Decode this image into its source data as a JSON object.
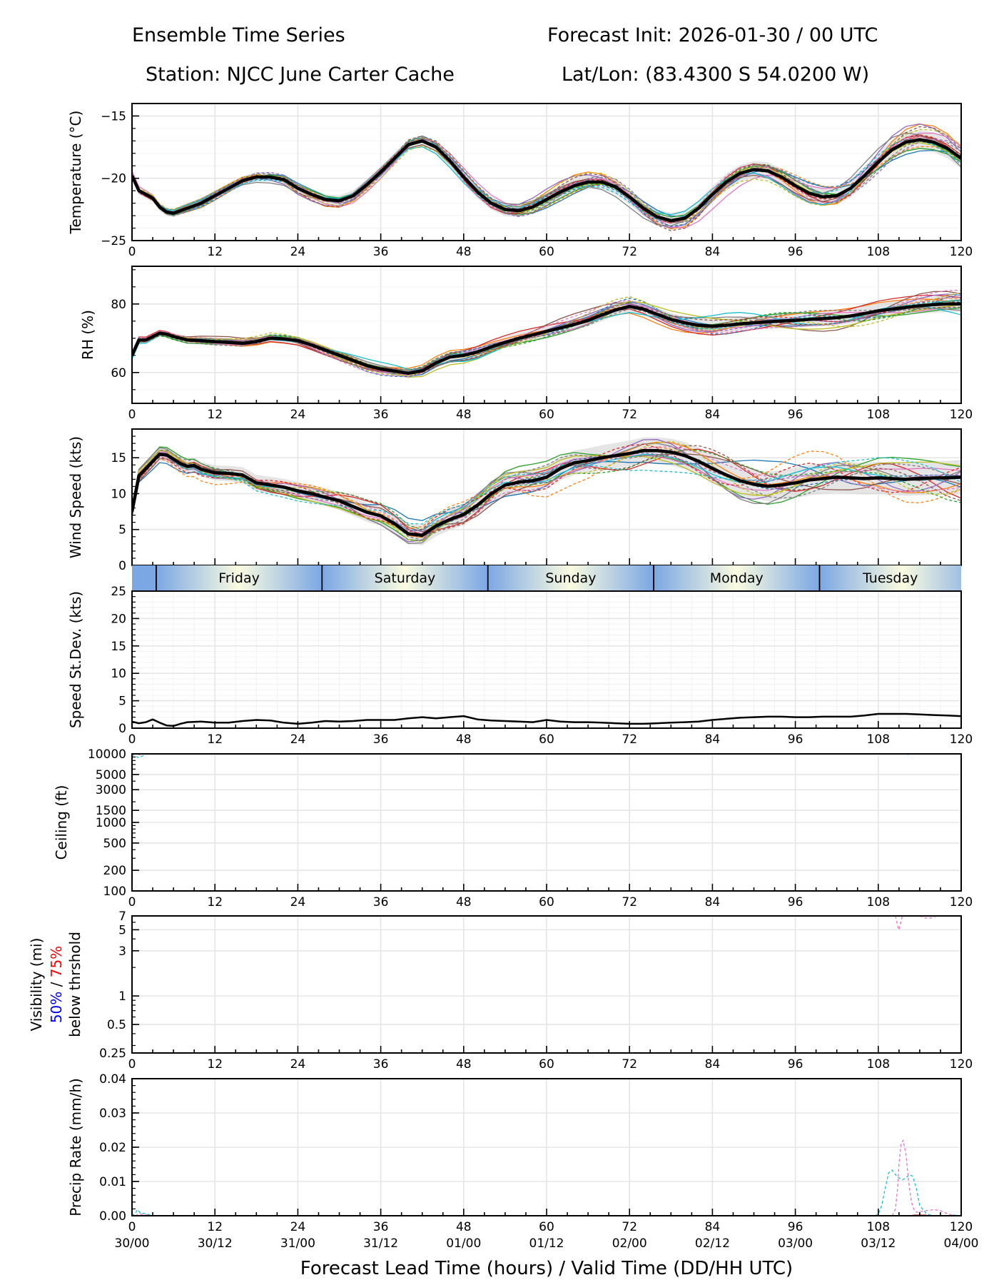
{
  "header": {
    "title_left": "Ensemble Time Series",
    "title_right": "Forecast Init: 2026-01-30 / 00 UTC",
    "station": "Station: NJCC June Carter Cache",
    "latlon": "Lat/Lon: (83.4300 S 54.0200 W)"
  },
  "colors": {
    "mean": "#000000",
    "spread": "#d3d3d3",
    "grid": "#e6e6e6",
    "vis_50": "#0000ff",
    "vis_75": "#ff0000",
    "members": [
      "#1f77b4",
      "#ff7f0e",
      "#2ca02c",
      "#d62728",
      "#9467bd",
      "#8c564b",
      "#e377c2",
      "#7f7f7f",
      "#bcbd22",
      "#17becf"
    ]
  },
  "chart_data": [
    {
      "id": "temperature",
      "type": "line",
      "ylabel": "Temperature (°C)",
      "ylim": [
        -25,
        -14
      ],
      "yticks": [
        -25,
        -20,
        -15
      ],
      "ytick_labels": [
        "−25",
        "−20",
        "−15"
      ],
      "xlim": [
        0,
        120
      ],
      "xticks": [
        0,
        12,
        24,
        36,
        48,
        60,
        72,
        84,
        96,
        108,
        120
      ],
      "grid": true,
      "mean": {
        "x": [
          0,
          1,
          2,
          3,
          4,
          5,
          6,
          7,
          8,
          10,
          12,
          14,
          16,
          18,
          20,
          22,
          24,
          26,
          28,
          30,
          32,
          34,
          36,
          38,
          40,
          42,
          44,
          46,
          48,
          50,
          52,
          54,
          56,
          58,
          60,
          62,
          64,
          66,
          68,
          70,
          72,
          74,
          76,
          78,
          80,
          82,
          84,
          86,
          88,
          90,
          92,
          94,
          96,
          98,
          100,
          102,
          104,
          106,
          108,
          110,
          112,
          114,
          116,
          118,
          120
        ],
        "y": [
          -19.8,
          -21.0,
          -21.3,
          -21.6,
          -22.3,
          -22.7,
          -22.8,
          -22.6,
          -22.4,
          -22.0,
          -21.4,
          -20.8,
          -20.2,
          -19.9,
          -19.9,
          -20.1,
          -20.8,
          -21.3,
          -21.7,
          -21.8,
          -21.4,
          -20.5,
          -19.5,
          -18.4,
          -17.3,
          -17.0,
          -17.5,
          -18.6,
          -19.9,
          -21.1,
          -22.0,
          -22.5,
          -22.6,
          -22.3,
          -21.7,
          -21.1,
          -20.6,
          -20.3,
          -20.3,
          -20.7,
          -21.5,
          -22.4,
          -23.1,
          -23.4,
          -23.2,
          -22.4,
          -21.3,
          -20.3,
          -19.6,
          -19.3,
          -19.4,
          -19.9,
          -20.6,
          -21.2,
          -21.5,
          -21.4,
          -20.8,
          -19.8,
          -18.7,
          -17.7,
          -17.1,
          -16.9,
          -17.1,
          -17.6,
          -18.4
        ]
      },
      "spread": 0.5,
      "member_count": 20
    },
    {
      "id": "rh",
      "type": "line",
      "ylabel": "RH (%)",
      "ylim": [
        51,
        91
      ],
      "yticks": [
        60,
        80
      ],
      "ytick_labels": [
        "60",
        "80"
      ],
      "xlim": [
        0,
        120
      ],
      "xticks": [
        0,
        12,
        24,
        36,
        48,
        60,
        72,
        84,
        96,
        108,
        120
      ],
      "grid": true,
      "mean": {
        "x": [
          0,
          1,
          2,
          3,
          4,
          5,
          6,
          8,
          10,
          12,
          14,
          16,
          18,
          20,
          22,
          24,
          26,
          28,
          30,
          32,
          34,
          36,
          38,
          40,
          42,
          44,
          46,
          48,
          50,
          52,
          54,
          56,
          58,
          60,
          62,
          64,
          66,
          68,
          70,
          72,
          74,
          76,
          78,
          80,
          82,
          84,
          86,
          88,
          90,
          92,
          94,
          96,
          98,
          100,
          102,
          104,
          106,
          108,
          110,
          112,
          114,
          116,
          118,
          120
        ],
        "y": [
          65,
          69.5,
          69.5,
          70.5,
          71.5,
          71.2,
          70.5,
          69.5,
          69.3,
          69.0,
          68.8,
          68.5,
          69.0,
          70.0,
          69.8,
          69.3,
          68.0,
          66.5,
          65.0,
          63.5,
          62.0,
          61.0,
          60.4,
          59.8,
          60.5,
          62.8,
          64.5,
          65.0,
          66.0,
          67.5,
          68.8,
          70.0,
          71.0,
          72.0,
          73.0,
          74.0,
          75.2,
          76.8,
          78.3,
          79.3,
          78.5,
          77.0,
          75.5,
          74.5,
          73.8,
          73.5,
          73.8,
          74.2,
          74.5,
          74.8,
          75.0,
          75.2,
          75.5,
          75.7,
          76.0,
          76.5,
          77.2,
          78.0,
          78.5,
          79.0,
          79.5,
          79.8,
          80.0,
          80.0
        ]
      },
      "spread": 1.5,
      "member_count": 20
    },
    {
      "id": "wind_speed",
      "type": "line",
      "ylabel": "Wind Speed (kts)",
      "ylim": [
        0,
        19
      ],
      "yticks": [
        0,
        5,
        10,
        15
      ],
      "ytick_labels": [
        "0",
        "5",
        "10",
        "15"
      ],
      "xlim": [
        0,
        120
      ],
      "xticks": [
        0,
        12,
        24,
        36,
        48,
        60,
        72,
        84,
        96,
        108,
        120
      ],
      "grid": true,
      "mean": {
        "x": [
          0,
          1,
          2,
          3,
          4,
          5,
          6,
          7,
          8,
          9,
          10,
          12,
          14,
          16,
          18,
          20,
          22,
          24,
          26,
          28,
          30,
          32,
          34,
          36,
          38,
          40,
          42,
          44,
          46,
          48,
          50,
          52,
          54,
          56,
          58,
          60,
          62,
          64,
          66,
          68,
          70,
          72,
          74,
          76,
          78,
          80,
          82,
          84,
          86,
          88,
          90,
          92,
          94,
          96,
          98,
          100,
          102,
          104,
          106,
          108,
          110,
          112,
          114,
          116,
          118,
          120
        ],
        "y": [
          7.5,
          12.5,
          13.5,
          14.5,
          15.5,
          15.4,
          14.8,
          14.2,
          13.8,
          13.9,
          13.4,
          12.9,
          12.8,
          12.6,
          11.5,
          11.2,
          10.9,
          10.4,
          10.0,
          9.5,
          9.0,
          8.2,
          7.4,
          6.9,
          5.8,
          4.4,
          4.2,
          5.5,
          6.4,
          7.1,
          8.4,
          10.0,
          11.2,
          11.6,
          11.8,
          12.3,
          13.5,
          14.3,
          14.6,
          15.0,
          15.3,
          15.6,
          16.0,
          16.0,
          15.8,
          15.3,
          14.5,
          13.5,
          12.6,
          11.8,
          11.3,
          11.0,
          11.2,
          11.5,
          11.9,
          12.1,
          12.3,
          12.2,
          12.1,
          12.2,
          12.1,
          12.0,
          12.1,
          12.2,
          12.2,
          12.3
        ]
      },
      "spread": 1.5,
      "member_count": 20
    },
    {
      "id": "day_band",
      "type": "table",
      "days": [
        "Friday",
        "Saturday",
        "Sunday",
        "Monday",
        "Tuesday"
      ],
      "day_boundaries_hours": [
        3.5,
        27.5,
        51.5,
        75.5,
        99.5
      ]
    },
    {
      "id": "speed_stddev",
      "type": "line",
      "ylabel": "Speed St.Dev. (kts)",
      "ylim": [
        0,
        25
      ],
      "yticks": [
        0,
        5,
        10,
        15,
        20,
        25
      ],
      "ytick_labels": [
        "0",
        "5",
        "10",
        "15",
        "20",
        "25"
      ],
      "xlim": [
        0,
        120
      ],
      "xticks": [
        0,
        12,
        24,
        36,
        48,
        60,
        72,
        84,
        96,
        108,
        120
      ],
      "grid": true,
      "mean": {
        "x": [
          0,
          1,
          2,
          3,
          4,
          5,
          6,
          7,
          8,
          10,
          12,
          14,
          16,
          18,
          20,
          22,
          24,
          26,
          28,
          30,
          32,
          34,
          36,
          38,
          40,
          42,
          44,
          46,
          48,
          50,
          52,
          54,
          56,
          58,
          60,
          62,
          64,
          66,
          68,
          70,
          72,
          74,
          76,
          78,
          80,
          82,
          84,
          86,
          88,
          90,
          92,
          94,
          96,
          98,
          100,
          102,
          104,
          106,
          108,
          110,
          112,
          114,
          116,
          118,
          120
        ],
        "y": [
          1.2,
          0.9,
          1.1,
          1.6,
          1.0,
          0.5,
          0.4,
          0.8,
          1.1,
          1.2,
          1.0,
          1.0,
          1.3,
          1.5,
          1.4,
          1.0,
          0.8,
          1.0,
          1.3,
          1.2,
          1.3,
          1.5,
          1.5,
          1.5,
          1.8,
          2.0,
          1.8,
          2.0,
          2.2,
          1.6,
          1.4,
          1.3,
          1.2,
          1.1,
          1.5,
          1.2,
          1.1,
          1.1,
          1.0,
          0.9,
          0.8,
          0.8,
          0.9,
          1.0,
          1.1,
          1.2,
          1.5,
          1.7,
          1.9,
          2.0,
          2.1,
          2.1,
          2.0,
          2.0,
          2.1,
          2.1,
          2.1,
          2.3,
          2.6,
          2.6,
          2.6,
          2.5,
          2.4,
          2.3,
          2.2
        ]
      }
    },
    {
      "id": "ceiling",
      "type": "line",
      "ylabel": "Ceiling (ft)",
      "yscale": "log",
      "ylim": [
        100,
        10000
      ],
      "yticks": [
        100,
        200,
        500,
        1000,
        1500,
        3000,
        5000,
        10000
      ],
      "ytick_labels": [
        "100",
        "200",
        "500",
        "1000",
        "1500",
        "3000",
        "5000",
        "10000"
      ],
      "xlim": [
        0,
        120
      ],
      "xticks": [
        0,
        12,
        24,
        36,
        48,
        60,
        72,
        84,
        96,
        108,
        120
      ],
      "grid": true,
      "members": [
        {
          "color_index": 9,
          "dashed": true,
          "x": [
            0,
            0.5,
            1,
            1.5,
            2
          ],
          "y": [
            10000,
            9200,
            8800,
            9300,
            10000
          ]
        },
        {
          "color_index": 6,
          "dashed": true,
          "x": [
            0.8,
            1.2
          ],
          "y": [
            10000,
            9600
          ]
        },
        {
          "color_index": 9,
          "dashed": true,
          "x": [
            112,
            112.6
          ],
          "y": [
            10000,
            9600
          ]
        }
      ]
    },
    {
      "id": "visibility",
      "type": "line",
      "ylabel": "Visibility (mi)",
      "ylabel_line2_a": "50%",
      "ylabel_line2_sep": " / ",
      "ylabel_line2_b": "75%",
      "ylabel_line3": "below thrshold",
      "yscale": "log",
      "ylim": [
        0.25,
        7
      ],
      "yticks": [
        0.25,
        0.5,
        1,
        3,
        5,
        7
      ],
      "ytick_labels": [
        "0.25",
        "0.5",
        "1",
        "3",
        "5",
        "7"
      ],
      "xlim": [
        0,
        120
      ],
      "xticks": [
        0,
        12,
        24,
        36,
        48,
        60,
        72,
        84,
        96,
        108,
        120
      ],
      "grid": true,
      "members": [
        {
          "color_index": 6,
          "dashed": true,
          "x": [
            110.5,
            110.8,
            111.0,
            111.2,
            111.5
          ],
          "y": [
            7,
            5.5,
            5.0,
            5.8,
            7
          ]
        },
        {
          "color_index": 6,
          "dashed": true,
          "x": [
            114,
            114.6,
            115.3,
            116,
            116.5
          ],
          "y": [
            7,
            6.7,
            6.6,
            6.8,
            7
          ]
        }
      ]
    },
    {
      "id": "precip_rate",
      "type": "line",
      "ylabel": "Precip Rate (mm/h)",
      "ylim": [
        0,
        0.04
      ],
      "yticks": [
        0,
        0.01,
        0.02,
        0.03,
        0.04
      ],
      "ytick_labels": [
        "0.00",
        "0.01",
        "0.02",
        "0.03",
        "0.04"
      ],
      "xlim": [
        0,
        120
      ],
      "xticks": [
        0,
        12,
        24,
        36,
        48,
        60,
        72,
        84,
        96,
        108,
        120
      ],
      "xtick_labels_valid": [
        "30/00",
        "30/12",
        "31/00",
        "31/12",
        "01/00",
        "01/12",
        "02/00",
        "02/12",
        "03/00",
        "03/12",
        "04/00"
      ],
      "xlabel": "Forecast Lead Time (hours) / Valid Time (DD/HH UTC)",
      "grid": true,
      "members": [
        {
          "color_index": 9,
          "dashed": true,
          "x": [
            0,
            0.5,
            0.8,
            1.2,
            2,
            3
          ],
          "y": [
            0,
            0.0008,
            0.0018,
            0.0008,
            0.0006,
            0
          ]
        },
        {
          "color_index": 6,
          "dashed": true,
          "x": [
            0.5,
            1,
            2,
            3
          ],
          "y": [
            0,
            0.0005,
            0.0003,
            0
          ]
        },
        {
          "color_index": 9,
          "dashed": true,
          "x": [
            107.5,
            108,
            108.5,
            109,
            109.5,
            110,
            110.5,
            111,
            111.5,
            112,
            112.5,
            113,
            113.5,
            114,
            115,
            116,
            117,
            118,
            119,
            120
          ],
          "y": [
            0,
            0.0005,
            0.003,
            0.008,
            0.0125,
            0.0133,
            0.012,
            0.011,
            0.0105,
            0.011,
            0.012,
            0.0115,
            0.008,
            0.003,
            0.0005,
            0,
            0,
            0,
            0.0002,
            0
          ]
        },
        {
          "color_index": 6,
          "dashed": true,
          "x": [
            110,
            110.5,
            110.8,
            111,
            111.3,
            111.6,
            112,
            112.4,
            112.8,
            113.2,
            113.6,
            114,
            115,
            116,
            117,
            118,
            119
          ],
          "y": [
            0,
            0.002,
            0.008,
            0.015,
            0.021,
            0.022,
            0.018,
            0.01,
            0.004,
            0.0015,
            0.001,
            0.0012,
            0.0015,
            0.0018,
            0.0015,
            0.0006,
            0
          ]
        },
        {
          "color_index": 3,
          "dashed": false,
          "x": [
            113,
            115
          ],
          "y": [
            0.0002,
            0.0002
          ]
        }
      ]
    }
  ]
}
